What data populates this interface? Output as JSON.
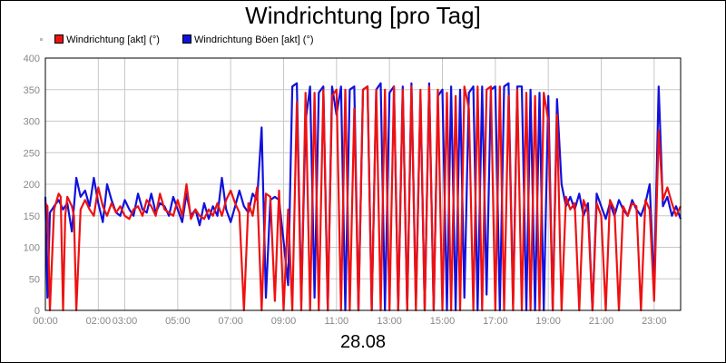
{
  "chart_data": {
    "type": "line",
    "title": "Windrichtung [pro Tag]",
    "date_label": "28.08",
    "xlabel": "",
    "ylabel": "",
    "ylim": [
      0,
      400
    ],
    "yticks": [
      0,
      50,
      100,
      150,
      200,
      250,
      300,
      350,
      400
    ],
    "xlim_hours": [
      0,
      24
    ],
    "xticks": [
      {
        "h": 0,
        "label": "00:00"
      },
      {
        "h": 2,
        "label": "02:00"
      },
      {
        "h": 3,
        "label": "03:00"
      },
      {
        "h": 5,
        "label": "05:00"
      },
      {
        "h": 7,
        "label": "07:00"
      },
      {
        "h": 9,
        "label": "09:00"
      },
      {
        "h": 11,
        "label": "11:00"
      },
      {
        "h": 13,
        "label": "13:00"
      },
      {
        "h": 15,
        "label": "15:00"
      },
      {
        "h": 17,
        "label": "17:00"
      },
      {
        "h": 19,
        "label": "19:00"
      },
      {
        "h": 21,
        "label": "21:00"
      },
      {
        "h": 23,
        "label": "23:00"
      }
    ],
    "grid": true,
    "legend_position": "top-left",
    "series": [
      {
        "name": "Windrichtung [akt] (°)",
        "color": "#ee1111",
        "points": [
          [
            0.0,
            170
          ],
          [
            0.08,
            165
          ],
          [
            0.17,
            0
          ],
          [
            0.33,
            160
          ],
          [
            0.5,
            185
          ],
          [
            0.58,
            180
          ],
          [
            0.67,
            0
          ],
          [
            0.75,
            150
          ],
          [
            0.83,
            180
          ],
          [
            1.0,
            165
          ],
          [
            1.08,
            150
          ],
          [
            1.17,
            0
          ],
          [
            1.33,
            160
          ],
          [
            1.5,
            175
          ],
          [
            1.67,
            160
          ],
          [
            1.83,
            150
          ],
          [
            2.0,
            195
          ],
          [
            2.17,
            165
          ],
          [
            2.33,
            150
          ],
          [
            2.5,
            170
          ],
          [
            2.67,
            155
          ],
          [
            2.83,
            165
          ],
          [
            3.0,
            150
          ],
          [
            3.17,
            145
          ],
          [
            3.33,
            160
          ],
          [
            3.5,
            165
          ],
          [
            3.67,
            150
          ],
          [
            3.83,
            175
          ],
          [
            4.0,
            165
          ],
          [
            4.17,
            150
          ],
          [
            4.33,
            185
          ],
          [
            4.5,
            160
          ],
          [
            4.67,
            155
          ],
          [
            4.83,
            150
          ],
          [
            5.0,
            175
          ],
          [
            5.17,
            150
          ],
          [
            5.33,
            200
          ],
          [
            5.5,
            145
          ],
          [
            5.67,
            160
          ],
          [
            5.83,
            150
          ],
          [
            6.0,
            145
          ],
          [
            6.17,
            160
          ],
          [
            6.33,
            150
          ],
          [
            6.5,
            170
          ],
          [
            6.67,
            150
          ],
          [
            6.83,
            175
          ],
          [
            7.0,
            190
          ],
          [
            7.17,
            170
          ],
          [
            7.33,
            155
          ],
          [
            7.5,
            0
          ],
          [
            7.67,
            170
          ],
          [
            7.83,
            150
          ],
          [
            8.0,
            195
          ],
          [
            8.17,
            0
          ],
          [
            8.33,
            185
          ],
          [
            8.5,
            180
          ],
          [
            8.67,
            15
          ],
          [
            8.83,
            190
          ],
          [
            9.0,
            0
          ],
          [
            9.17,
            160
          ],
          [
            9.33,
            0
          ],
          [
            9.5,
            330
          ],
          [
            9.67,
            0
          ],
          [
            9.83,
            345
          ],
          [
            10.0,
            0
          ],
          [
            10.17,
            345
          ],
          [
            10.33,
            0
          ],
          [
            10.5,
            350
          ],
          [
            10.67,
            0
          ],
          [
            10.83,
            340
          ],
          [
            11.0,
            350
          ],
          [
            11.17,
            0
          ],
          [
            11.33,
            350
          ],
          [
            11.5,
            0
          ],
          [
            11.67,
            320
          ],
          [
            11.83,
            0
          ],
          [
            12.0,
            350
          ],
          [
            12.17,
            355
          ],
          [
            12.33,
            0
          ],
          [
            12.5,
            350
          ],
          [
            12.67,
            0
          ],
          [
            12.83,
            350
          ],
          [
            13.0,
            0
          ],
          [
            13.17,
            355
          ],
          [
            13.33,
            0
          ],
          [
            13.5,
            350
          ],
          [
            13.67,
            0
          ],
          [
            13.83,
            355
          ],
          [
            14.0,
            0
          ],
          [
            14.17,
            350
          ],
          [
            14.33,
            0
          ],
          [
            14.5,
            355
          ],
          [
            14.67,
            0
          ],
          [
            14.83,
            350
          ],
          [
            15.0,
            0
          ],
          [
            15.17,
            345
          ],
          [
            15.33,
            0
          ],
          [
            15.5,
            340
          ],
          [
            15.67,
            0
          ],
          [
            15.83,
            355
          ],
          [
            16.0,
            320
          ],
          [
            16.17,
            0
          ],
          [
            16.33,
            355
          ],
          [
            16.5,
            0
          ],
          [
            16.67,
            350
          ],
          [
            16.83,
            355
          ],
          [
            17.0,
            0
          ],
          [
            17.17,
            355
          ],
          [
            17.33,
            0
          ],
          [
            17.5,
            340
          ],
          [
            17.67,
            0
          ],
          [
            17.83,
            350
          ],
          [
            18.0,
            0
          ],
          [
            18.17,
            345
          ],
          [
            18.33,
            0
          ],
          [
            18.5,
            340
          ],
          [
            18.67,
            0
          ],
          [
            18.83,
            345
          ],
          [
            19.0,
            300
          ],
          [
            19.17,
            0
          ],
          [
            19.33,
            310
          ],
          [
            19.5,
            0
          ],
          [
            19.67,
            180
          ],
          [
            19.83,
            160
          ],
          [
            20.0,
            170
          ],
          [
            20.17,
            0
          ],
          [
            20.33,
            175
          ],
          [
            20.5,
            155
          ],
          [
            20.67,
            0
          ],
          [
            20.83,
            170
          ],
          [
            21.0,
            150
          ],
          [
            21.17,
            0
          ],
          [
            21.33,
            175
          ],
          [
            21.5,
            160
          ],
          [
            21.67,
            0
          ],
          [
            21.83,
            165
          ],
          [
            22.0,
            150
          ],
          [
            22.17,
            170
          ],
          [
            22.33,
            165
          ],
          [
            22.5,
            0
          ],
          [
            22.67,
            175
          ],
          [
            22.83,
            160
          ],
          [
            23.0,
            15
          ],
          [
            23.17,
            285
          ],
          [
            23.33,
            175
          ],
          [
            23.5,
            195
          ],
          [
            23.67,
            170
          ],
          [
            23.83,
            150
          ],
          [
            24.0,
            165
          ]
        ]
      },
      {
        "name": "Windrichtung Böen [akt] (°)",
        "color": "#1111dd",
        "points": [
          [
            0.0,
            180
          ],
          [
            0.08,
            20
          ],
          [
            0.17,
            155
          ],
          [
            0.33,
            165
          ],
          [
            0.5,
            175
          ],
          [
            0.67,
            160
          ],
          [
            0.83,
            170
          ],
          [
            1.0,
            125
          ],
          [
            1.17,
            210
          ],
          [
            1.33,
            180
          ],
          [
            1.5,
            190
          ],
          [
            1.67,
            165
          ],
          [
            1.83,
            210
          ],
          [
            2.0,
            170
          ],
          [
            2.17,
            140
          ],
          [
            2.33,
            200
          ],
          [
            2.5,
            175
          ],
          [
            2.67,
            155
          ],
          [
            2.83,
            150
          ],
          [
            3.0,
            175
          ],
          [
            3.17,
            160
          ],
          [
            3.33,
            150
          ],
          [
            3.5,
            185
          ],
          [
            3.67,
            160
          ],
          [
            3.83,
            155
          ],
          [
            4.0,
            185
          ],
          [
            4.17,
            155
          ],
          [
            4.33,
            170
          ],
          [
            4.5,
            165
          ],
          [
            4.67,
            150
          ],
          [
            4.83,
            180
          ],
          [
            5.0,
            160
          ],
          [
            5.17,
            140
          ],
          [
            5.33,
            185
          ],
          [
            5.5,
            150
          ],
          [
            5.67,
            160
          ],
          [
            5.83,
            135
          ],
          [
            6.0,
            170
          ],
          [
            6.17,
            145
          ],
          [
            6.33,
            165
          ],
          [
            6.5,
            150
          ],
          [
            6.67,
            210
          ],
          [
            6.83,
            160
          ],
          [
            7.0,
            140
          ],
          [
            7.17,
            165
          ],
          [
            7.33,
            190
          ],
          [
            7.5,
            165
          ],
          [
            7.67,
            155
          ],
          [
            7.83,
            185
          ],
          [
            8.0,
            175
          ],
          [
            8.17,
            290
          ],
          [
            8.33,
            20
          ],
          [
            8.5,
            175
          ],
          [
            8.67,
            180
          ],
          [
            8.83,
            175
          ],
          [
            9.0,
            110
          ],
          [
            9.17,
            40
          ],
          [
            9.33,
            355
          ],
          [
            9.5,
            360
          ],
          [
            9.67,
            15
          ],
          [
            9.83,
            300
          ],
          [
            10.0,
            355
          ],
          [
            10.17,
            20
          ],
          [
            10.33,
            345
          ],
          [
            10.5,
            355
          ],
          [
            10.67,
            0
          ],
          [
            10.83,
            355
          ],
          [
            11.0,
            310
          ],
          [
            11.17,
            355
          ],
          [
            11.33,
            0
          ],
          [
            11.5,
            350
          ],
          [
            11.67,
            355
          ],
          [
            11.83,
            0
          ],
          [
            12.0,
            350
          ],
          [
            12.17,
            355
          ],
          [
            12.33,
            0
          ],
          [
            12.5,
            350
          ],
          [
            12.67,
            360
          ],
          [
            12.83,
            0
          ],
          [
            13.0,
            345
          ],
          [
            13.17,
            355
          ],
          [
            13.33,
            0
          ],
          [
            13.5,
            355
          ],
          [
            13.67,
            0
          ],
          [
            13.83,
            360
          ],
          [
            14.0,
            10
          ],
          [
            14.17,
            340
          ],
          [
            14.33,
            0
          ],
          [
            14.5,
            360
          ],
          [
            14.67,
            0
          ],
          [
            14.83,
            340
          ],
          [
            15.0,
            350
          ],
          [
            15.17,
            0
          ],
          [
            15.33,
            355
          ],
          [
            15.5,
            0
          ],
          [
            15.67,
            350
          ],
          [
            15.83,
            20
          ],
          [
            16.0,
            345
          ],
          [
            16.17,
            355
          ],
          [
            16.33,
            0
          ],
          [
            16.5,
            355
          ],
          [
            16.67,
            25
          ],
          [
            16.83,
            350
          ],
          [
            17.0,
            355
          ],
          [
            17.17,
            0
          ],
          [
            17.33,
            355
          ],
          [
            17.5,
            360
          ],
          [
            17.67,
            10
          ],
          [
            17.83,
            355
          ],
          [
            18.0,
            355
          ],
          [
            18.17,
            0
          ],
          [
            18.33,
            350
          ],
          [
            18.5,
            0
          ],
          [
            18.67,
            345
          ],
          [
            18.83,
            0
          ],
          [
            19.0,
            340
          ],
          [
            19.17,
            0
          ],
          [
            19.33,
            335
          ],
          [
            19.5,
            200
          ],
          [
            19.67,
            165
          ],
          [
            19.83,
            180
          ],
          [
            20.0,
            160
          ],
          [
            20.17,
            185
          ],
          [
            20.33,
            150
          ],
          [
            20.5,
            170
          ],
          [
            20.67,
            0
          ],
          [
            20.83,
            185
          ],
          [
            21.0,
            165
          ],
          [
            21.17,
            145
          ],
          [
            21.33,
            170
          ],
          [
            21.5,
            150
          ],
          [
            21.67,
            175
          ],
          [
            21.83,
            160
          ],
          [
            22.0,
            150
          ],
          [
            22.17,
            175
          ],
          [
            22.33,
            160
          ],
          [
            22.5,
            150
          ],
          [
            22.67,
            170
          ],
          [
            22.83,
            200
          ],
          [
            23.0,
            35
          ],
          [
            23.17,
            355
          ],
          [
            23.33,
            165
          ],
          [
            23.5,
            180
          ],
          [
            23.67,
            150
          ],
          [
            23.83,
            165
          ],
          [
            24.0,
            145
          ]
        ]
      }
    ]
  }
}
